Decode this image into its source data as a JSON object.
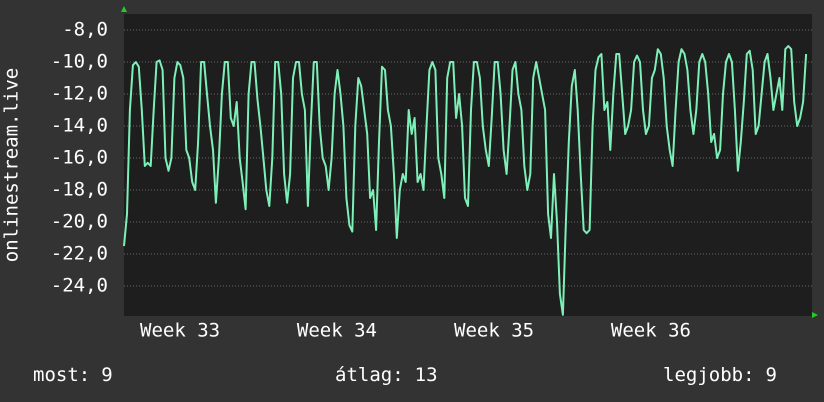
{
  "chart_data": {
    "type": "line",
    "y_label": "onlinestream.live",
    "series": [
      {
        "name": "onlinestream.live",
        "color": "#7df0b8",
        "values": [
          -21.5,
          -19.5,
          -13,
          -10.2,
          -10,
          -10.3,
          -13,
          -16.5,
          -16.3,
          -16.5,
          -13,
          -10,
          -9.9,
          -10.5,
          -16,
          -16.8,
          -16,
          -11,
          -10,
          -10.2,
          -11,
          -15.5,
          -16,
          -17.5,
          -18,
          -15,
          -10,
          -10,
          -12,
          -14,
          -15.5,
          -18.8,
          -16,
          -12,
          -10,
          -10,
          -13.5,
          -14,
          -12.5,
          -16,
          -17.5,
          -19.2,
          -12,
          -10,
          -10,
          -12.3,
          -14,
          -16,
          -18,
          -19,
          -16,
          -10,
          -10,
          -12,
          -17,
          -18.8,
          -17,
          -11,
          -10,
          -10,
          -12,
          -13,
          -19,
          -14,
          -10,
          -10,
          -14,
          -16,
          -16.5,
          -18,
          -16,
          -12,
          -10.5,
          -12,
          -14,
          -18.5,
          -20.2,
          -20.6,
          -14,
          -11,
          -11.5,
          -13,
          -14.5,
          -18.5,
          -18,
          -20.5,
          -15,
          -10.3,
          -10.5,
          -13,
          -14,
          -17,
          -21,
          -18,
          -17,
          -17.5,
          -13,
          -14.5,
          -13.5,
          -17.5,
          -17,
          -18,
          -14,
          -10.5,
          -10,
          -10.5,
          -16,
          -17,
          -18.5,
          -11,
          -10,
          -10,
          -13.5,
          -12,
          -14,
          -18.5,
          -19,
          -13,
          -10,
          -10,
          -11,
          -14,
          -15.5,
          -16.5,
          -13.5,
          -10,
          -10,
          -12,
          -15.5,
          -17,
          -14,
          -10.5,
          -10,
          -12,
          -13,
          -16.5,
          -18,
          -17,
          -11,
          -10,
          -11,
          -12,
          -13,
          -19.5,
          -21,
          -17,
          -20,
          -24.5,
          -25.8,
          -20,
          -15,
          -11.5,
          -10.5,
          -13,
          -17,
          -20.5,
          -20.7,
          -20.5,
          -14,
          -10.5,
          -9.7,
          -9.5,
          -13,
          -12.5,
          -15.5,
          -12,
          -9.5,
          -9.5,
          -12,
          -14.5,
          -14,
          -13,
          -10,
          -9.6,
          -10,
          -13,
          -14.5,
          -14,
          -11,
          -10.5,
          -9.2,
          -9.5,
          -11,
          -14,
          -15.5,
          -16.5,
          -13,
          -10,
          -9.2,
          -9.5,
          -10.5,
          -13,
          -14.5,
          -13,
          -10,
          -9.5,
          -10,
          -12,
          -15,
          -14.5,
          -16,
          -15.5,
          -12,
          -10,
          -9.5,
          -10,
          -13,
          -16.8,
          -15,
          -12.5,
          -9.5,
          -9.3,
          -10.5,
          -14.5,
          -14,
          -12,
          -10,
          -9.5,
          -11,
          -13,
          -12,
          -11,
          -13,
          -9.2,
          -9,
          -9.2,
          -12.5,
          -14,
          -13.5,
          -12.5,
          -9.5
        ]
      }
    ],
    "xlim": [
      0,
      232
    ],
    "xticks": [
      {
        "value": 18.9,
        "label": "Week 33"
      },
      {
        "value": 71.8,
        "label": "Week 34"
      },
      {
        "value": 124.8,
        "label": "Week 35"
      },
      {
        "value": 177.7,
        "label": "Week 36"
      }
    ],
    "ylim": [
      -25.875,
      -7
    ],
    "yticks": [
      {
        "value": -8,
        "label": "-8,0"
      },
      {
        "value": -10,
        "label": "-10,0"
      },
      {
        "value": -12,
        "label": "-12,0"
      },
      {
        "value": -14,
        "label": "-14,0"
      },
      {
        "value": -16,
        "label": "-16,0"
      },
      {
        "value": -18,
        "label": "-18,0"
      },
      {
        "value": -20,
        "label": "-20,0"
      },
      {
        "value": -22,
        "label": "-22,0"
      },
      {
        "value": -24,
        "label": "-24,0"
      }
    ],
    "grid": true,
    "legend_stats": [
      {
        "label": "most:",
        "value": 9
      },
      {
        "label": "átlag:",
        "value": 13
      },
      {
        "label": "legjobb:",
        "value": 9
      }
    ]
  }
}
